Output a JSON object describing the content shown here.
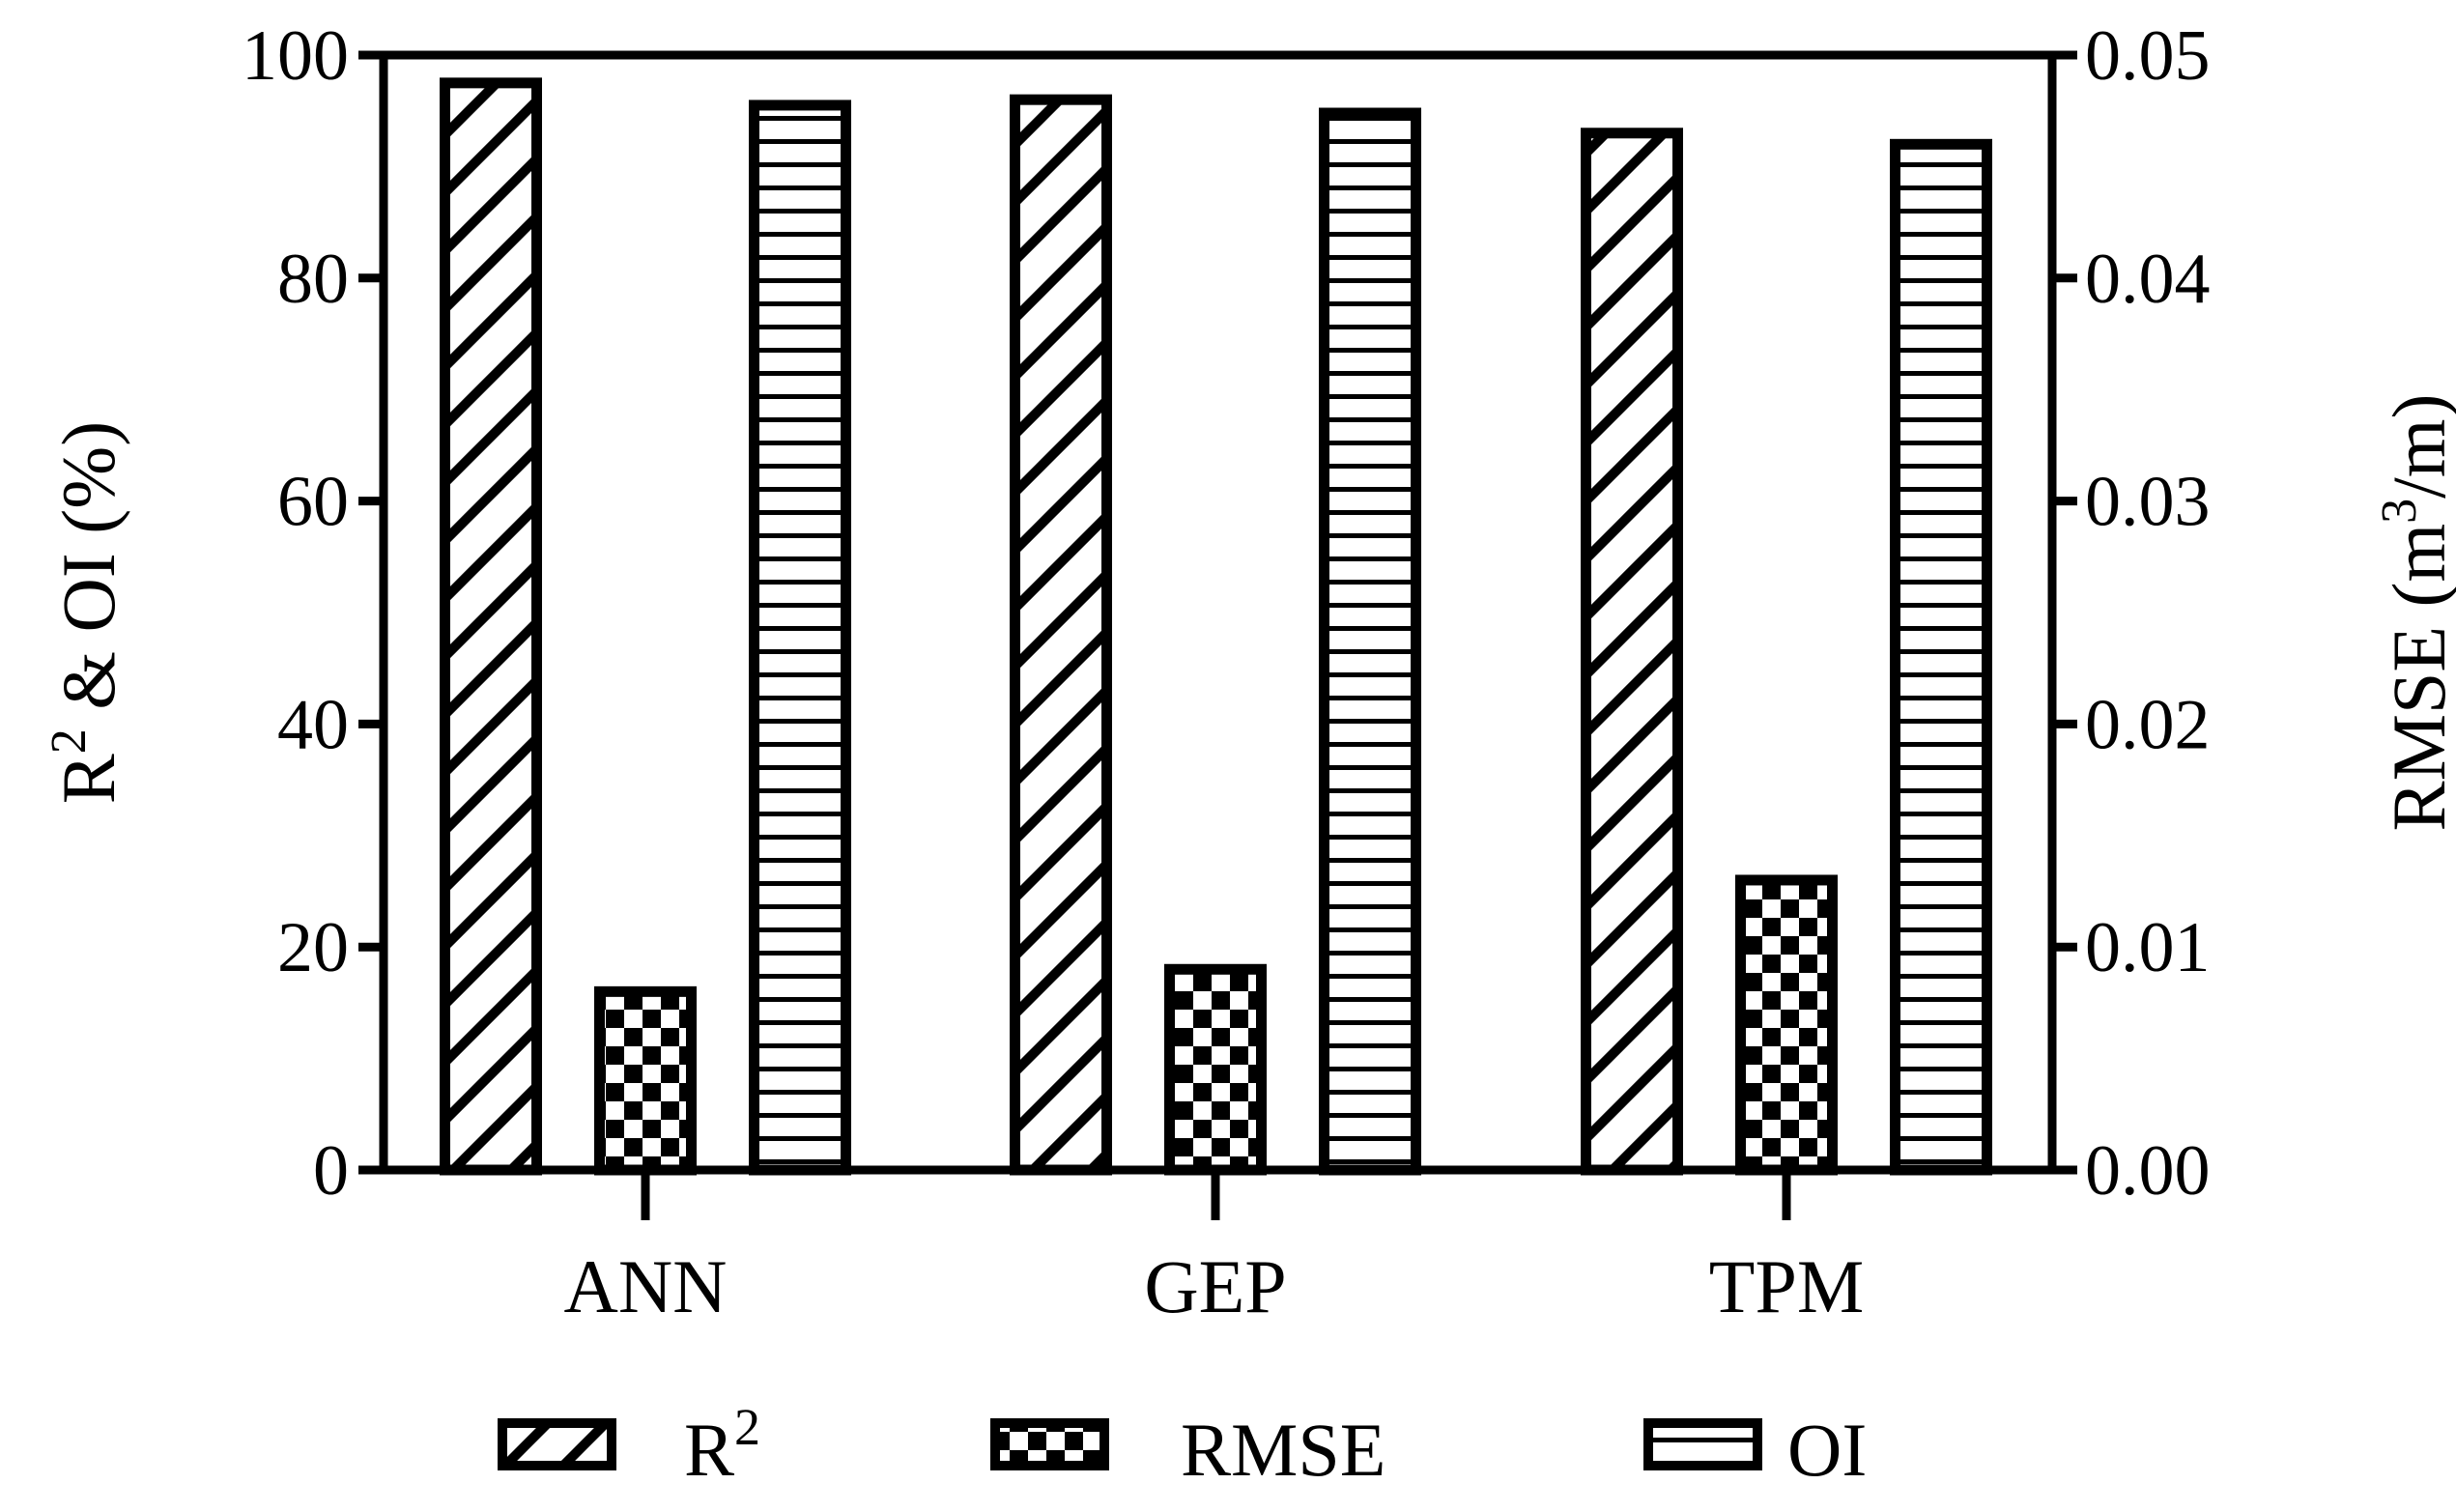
{
  "chart_data": {
    "type": "bar",
    "categories": [
      "ANN",
      "GEP",
      "TPM"
    ],
    "series": [
      {
        "name": "R2",
        "legend_label": "R",
        "legend_sup": "2",
        "axis": "left",
        "pattern": "diagonal-hatch",
        "values": [
          97.5,
          96,
          93
        ]
      },
      {
        "name": "RMSE",
        "legend_label": "RMSE",
        "axis": "right",
        "pattern": "checkerboard",
        "values": [
          0.008,
          0.009,
          0.013
        ]
      },
      {
        "name": "OI",
        "legend_label": "OI",
        "axis": "left",
        "pattern": "horizontal-lines",
        "values": [
          95.5,
          94.8,
          92
        ]
      }
    ],
    "y_left": {
      "label_main": "R",
      "label_sup": "2",
      "label_rest": " & OI (%)",
      "ylim": [
        0,
        100
      ],
      "ticks": [
        "0",
        "20",
        "40",
        "60",
        "80",
        "100"
      ]
    },
    "y_right": {
      "label_main": "RMSE (m",
      "label_sup": "3",
      "label_rest": "/m)",
      "ylim": [
        0,
        0.05
      ],
      "ticks": [
        "0.00",
        "0.01",
        "0.02",
        "0.03",
        "0.04",
        "0.05"
      ]
    },
    "xlabel": "",
    "grid": false,
    "legend_position": "bottom",
    "colors": {
      "stroke": "#000000",
      "fill": "#ffffff"
    }
  }
}
